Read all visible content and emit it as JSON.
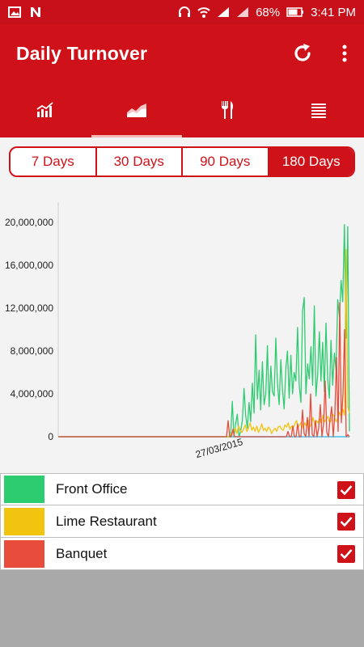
{
  "statusbar": {
    "battery": "68%",
    "time": "3:41 PM"
  },
  "appbar": {
    "title": "Daily Turnover"
  },
  "tabs": [
    {
      "icon": "bar-chart-icon",
      "active": false
    },
    {
      "icon": "area-chart-icon",
      "active": true
    },
    {
      "icon": "fork-knife-icon",
      "active": false
    },
    {
      "icon": "list-icon",
      "active": false
    }
  ],
  "range": {
    "options": [
      "7 Days",
      "30 Days",
      "90 Days",
      "180 Days"
    ],
    "selected": "180 Days"
  },
  "chart_data": {
    "type": "line",
    "ylim": [
      0,
      20000000
    ],
    "yticks": [
      "0",
      "4,000,000",
      "8,000,000",
      "12,000,000",
      "16,000,000",
      "20,000,000"
    ],
    "x_label_shown": "27/03/2015",
    "grid": false,
    "series": [
      {
        "name": "Front Office",
        "color": "#2ecc71",
        "values": [
          0,
          0,
          0,
          0,
          0,
          0,
          0,
          0,
          0,
          0,
          0,
          0,
          0,
          0,
          0,
          0,
          0,
          0,
          0,
          0,
          0,
          0,
          0,
          0,
          0,
          0,
          0,
          0,
          0,
          0,
          0,
          0,
          0,
          0,
          0,
          0,
          0,
          0,
          0,
          0,
          0,
          0,
          0,
          0,
          0,
          0,
          0,
          0,
          0,
          0,
          0,
          0,
          0,
          0,
          0,
          0,
          0,
          0,
          0,
          0,
          0,
          0,
          0,
          0,
          0,
          0,
          0,
          0,
          0,
          0,
          0,
          0,
          0,
          0,
          0,
          0,
          0,
          0,
          0,
          0,
          0,
          0,
          0,
          0,
          0,
          0,
          0,
          0,
          0,
          0,
          0,
          0,
          0,
          0,
          0,
          0,
          0,
          0,
          0,
          0,
          0,
          0,
          0,
          0,
          3300000,
          0,
          1200000,
          2100000,
          0,
          500000,
          1500000,
          4500000,
          2000000,
          800000,
          3200000,
          1400000,
          5000000,
          2200000,
          9500000,
          3500000,
          6200000,
          2500000,
          7000000,
          3000000,
          4000000,
          8500000,
          2800000,
          6600000,
          4200000,
          3800000,
          9200000,
          5000000,
          3000000,
          7200000,
          4400000,
          2600000,
          6400000,
          8000000,
          3600000,
          7600000,
          4000000,
          6000000,
          5200000,
          10200000,
          4800000,
          3200000,
          11800000,
          13000000,
          4000000,
          6800000,
          5400000,
          8400000,
          4800000,
          12200000,
          3800000,
          5800000,
          9800000,
          5200000,
          8800000,
          4200000,
          10600000,
          5400000,
          3600000,
          9000000,
          4800000,
          7800000,
          6200000,
          12800000,
          11200000,
          14600000,
          12600000,
          19800000,
          9200000,
          19600000,
          500000
        ]
      },
      {
        "name": "Lime Restaurant",
        "color": "#f1c40f",
        "values": [
          0,
          0,
          0,
          0,
          0,
          0,
          0,
          0,
          0,
          0,
          0,
          0,
          0,
          0,
          0,
          0,
          0,
          0,
          0,
          0,
          0,
          0,
          0,
          0,
          0,
          0,
          0,
          0,
          0,
          0,
          0,
          0,
          0,
          0,
          0,
          0,
          0,
          0,
          0,
          0,
          0,
          0,
          0,
          0,
          0,
          0,
          0,
          0,
          0,
          0,
          0,
          0,
          0,
          0,
          0,
          0,
          0,
          0,
          0,
          0,
          0,
          0,
          0,
          0,
          0,
          0,
          0,
          0,
          0,
          0,
          0,
          0,
          0,
          0,
          0,
          0,
          0,
          0,
          0,
          0,
          0,
          0,
          0,
          0,
          0,
          0,
          0,
          0,
          0,
          0,
          0,
          0,
          0,
          0,
          0,
          0,
          0,
          0,
          0,
          0,
          0,
          0,
          0,
          0,
          200000,
          300000,
          500000,
          800000,
          300000,
          1000000,
          600000,
          400000,
          700000,
          1100000,
          500000,
          800000,
          1300000,
          600000,
          900000,
          500000,
          1000000,
          400000,
          700000,
          1200000,
          600000,
          800000,
          500000,
          900000,
          700000,
          300000,
          600000,
          800000,
          500000,
          900000,
          1000000,
          700000,
          600000,
          1100000,
          900000,
          1300000,
          700000,
          1000000,
          800000,
          1200000,
          1500000,
          900000,
          1100000,
          1400000,
          800000,
          1300000,
          1000000,
          1600000,
          900000,
          1200000,
          1800000,
          1100000,
          1500000,
          1300000,
          1700000,
          1200000,
          2000000,
          1400000,
          1600000,
          1900000,
          1300000,
          1500000,
          2100000,
          1800000,
          1400000,
          1700000,
          2300000,
          1900000,
          2600000,
          2000000,
          17500000,
          2800000,
          2200000
        ]
      },
      {
        "name": "Banquet",
        "color": "#e74c3c",
        "values": [
          0,
          0,
          0,
          0,
          0,
          0,
          0,
          0,
          0,
          0,
          0,
          0,
          0,
          0,
          0,
          0,
          0,
          0,
          0,
          0,
          0,
          0,
          0,
          0,
          0,
          0,
          0,
          0,
          0,
          0,
          0,
          0,
          0,
          0,
          0,
          0,
          0,
          0,
          0,
          0,
          0,
          0,
          0,
          0,
          0,
          0,
          0,
          0,
          0,
          0,
          0,
          0,
          0,
          0,
          0,
          0,
          0,
          0,
          0,
          0,
          0,
          0,
          0,
          0,
          0,
          0,
          0,
          0,
          0,
          0,
          0,
          0,
          0,
          0,
          0,
          0,
          0,
          0,
          0,
          0,
          0,
          0,
          0,
          0,
          0,
          0,
          0,
          0,
          0,
          0,
          0,
          0,
          0,
          0,
          0,
          0,
          0,
          0,
          0,
          0,
          0,
          0,
          0,
          0,
          0,
          1500000,
          0,
          0,
          700000,
          0,
          0,
          0,
          0,
          0,
          0,
          0,
          0,
          0,
          0,
          0,
          0,
          0,
          0,
          0,
          0,
          0,
          0,
          0,
          0,
          0,
          0,
          0,
          0,
          0,
          0,
          0,
          0,
          0,
          0,
          0,
          0,
          0,
          500000,
          0,
          0,
          1000000,
          0,
          0,
          1200000,
          0,
          0,
          2500000,
          300000,
          0,
          1800000,
          0,
          4000000,
          200000,
          0,
          1500000,
          0,
          800000,
          3000000,
          0,
          1200000,
          5200000,
          400000,
          0,
          1600000,
          2800000,
          0,
          2200000,
          7400000,
          500000,
          12500000,
          1300000,
          4000000,
          10000000,
          0,
          200000,
          0
        ]
      },
      {
        "name": "",
        "color": "#5bc8ef",
        "values": [
          0,
          0,
          0,
          0,
          0,
          0,
          0,
          0,
          0,
          0,
          0,
          0,
          0,
          0,
          0,
          0,
          0,
          0,
          0,
          0,
          0,
          0,
          0,
          0,
          0,
          0,
          0,
          0,
          0,
          0,
          0,
          0,
          0,
          0,
          0,
          0,
          0,
          0,
          0,
          0,
          0,
          0,
          0,
          0,
          0,
          0,
          0,
          0,
          0,
          0,
          0,
          0,
          0,
          0,
          0,
          0,
          0,
          0,
          0,
          0,
          0,
          0,
          0,
          0,
          0,
          0,
          0,
          0,
          0,
          0,
          0,
          0,
          0,
          0,
          0,
          0,
          0,
          0,
          0,
          0,
          0,
          0,
          0,
          0,
          0,
          0,
          0,
          0,
          0,
          0,
          0,
          0,
          0,
          0,
          0,
          0,
          0,
          0,
          0,
          0,
          0,
          0,
          0,
          0,
          0,
          0,
          0,
          0,
          0,
          0,
          0,
          0,
          0,
          0,
          0,
          0,
          0,
          0,
          0,
          0,
          0,
          0,
          0,
          0,
          0,
          0,
          0,
          0,
          0,
          0,
          0,
          0,
          0,
          0,
          0,
          0,
          0,
          0,
          0,
          0,
          0,
          0,
          0,
          0,
          0,
          0,
          0,
          0,
          0,
          0,
          0,
          0,
          0,
          0,
          0,
          0,
          0,
          0,
          0,
          0,
          0,
          0,
          0,
          0,
          0,
          0,
          0,
          0,
          0,
          0,
          0,
          0,
          0,
          0,
          0,
          0,
          0,
          0,
          0,
          0
        ]
      }
    ]
  },
  "legend": [
    {
      "label": "Front Office",
      "color": "#2ecc71",
      "checked": true
    },
    {
      "label": "Lime Restaurant",
      "color": "#f1c40f",
      "checked": true
    },
    {
      "label": "Banquet",
      "color": "#e74c3c",
      "checked": true
    }
  ]
}
